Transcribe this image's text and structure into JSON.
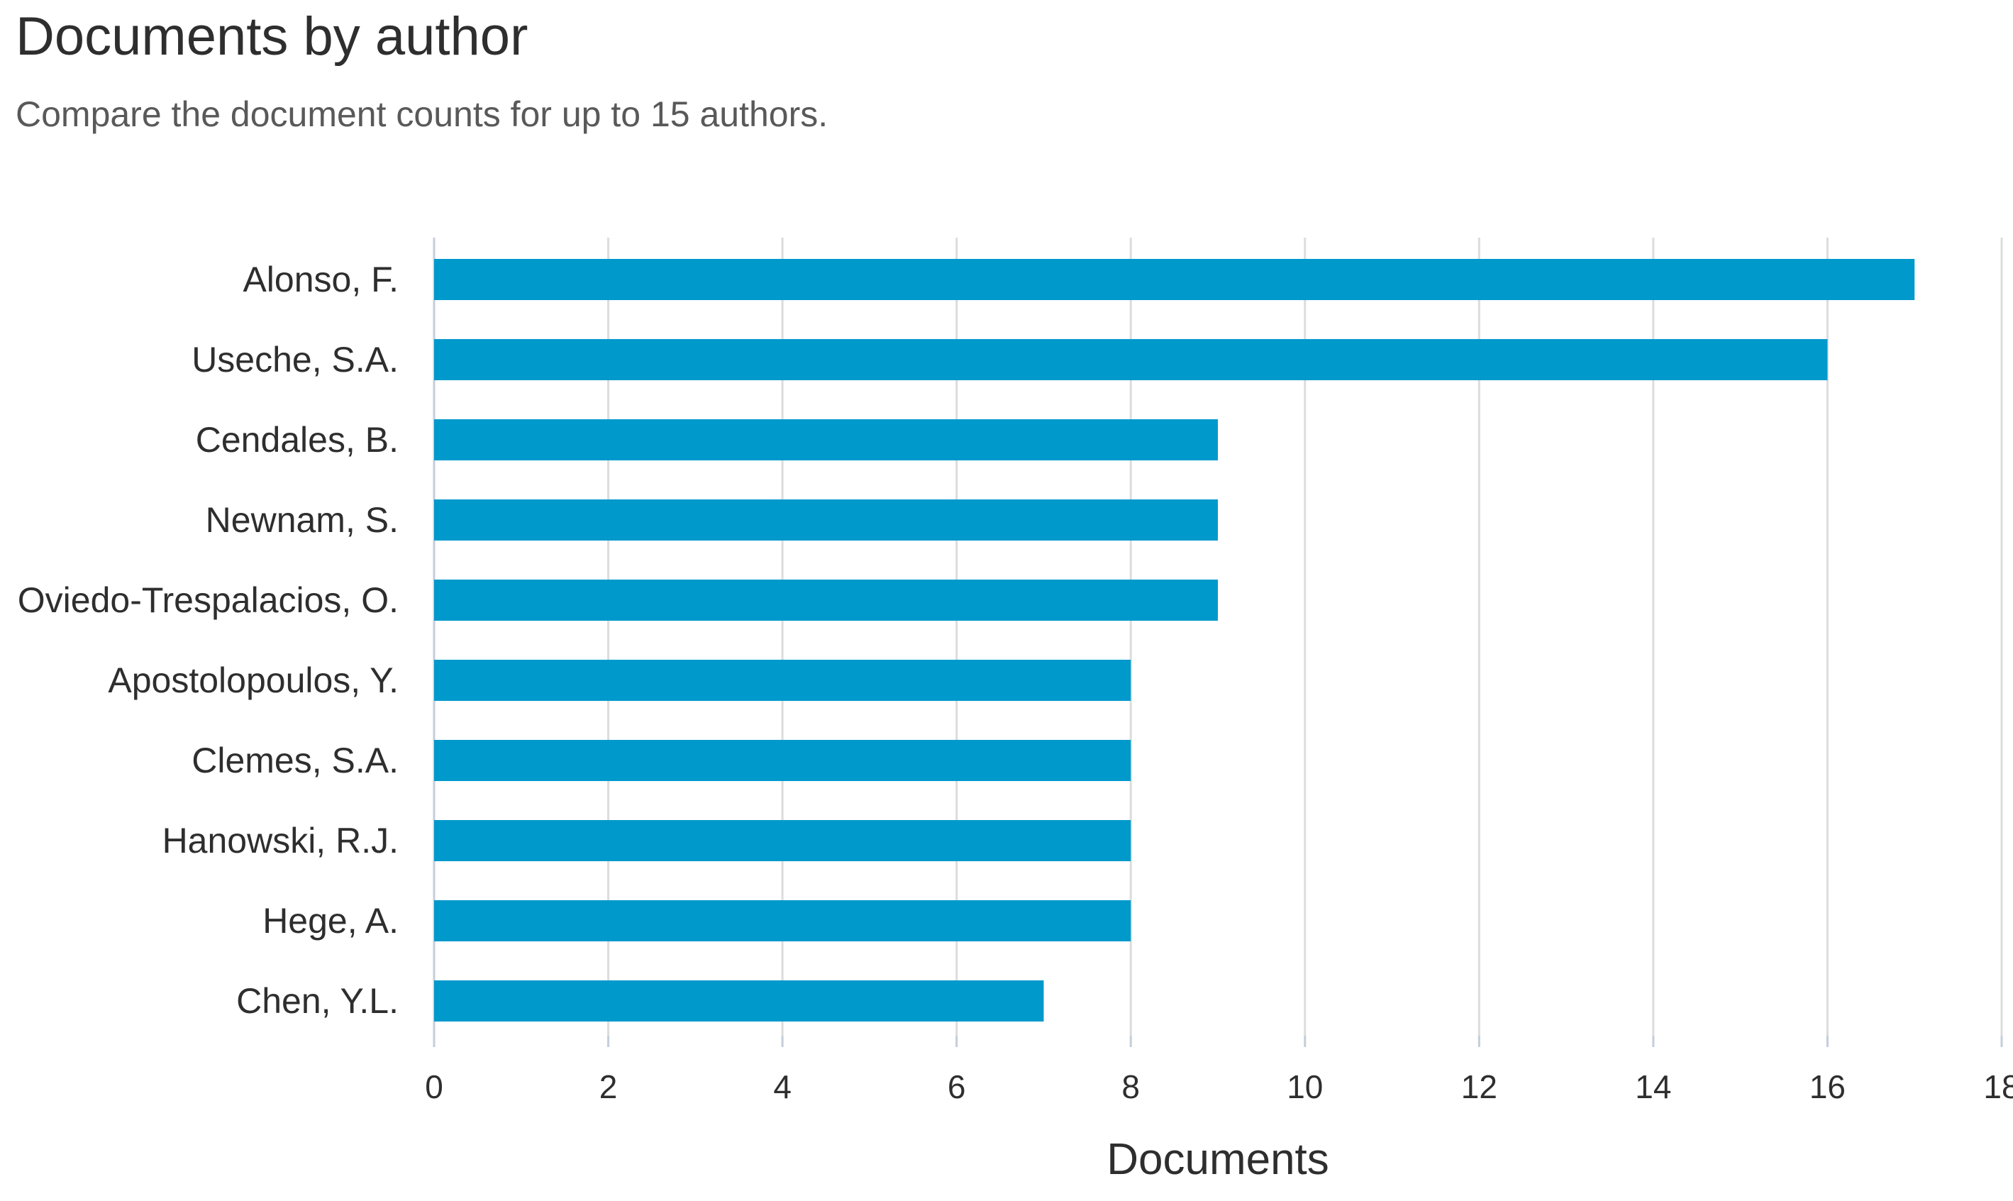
{
  "header": {
    "title": "Documents by author",
    "subtitle": "Compare the document counts for up to 15 authors."
  },
  "chart_data": {
    "type": "bar",
    "orientation": "horizontal",
    "categories": [
      "Alonso, F.",
      "Useche, S.A.",
      "Cendales, B.",
      "Newnam, S.",
      "Oviedo-Trespalacios, O.",
      "Apostolopoulos, Y.",
      "Clemes, S.A.",
      "Hanowski, R.J.",
      "Hege, A.",
      "Chen, Y.L."
    ],
    "values": [
      17,
      16,
      9,
      9,
      9,
      8,
      8,
      8,
      8,
      7
    ],
    "xlabel": "Documents",
    "ylabel": "",
    "xlim": [
      0,
      18
    ],
    "xticks": [
      "0",
      "2",
      "4",
      "6",
      "8",
      "10",
      "12",
      "14",
      "16",
      "18"
    ],
    "grid": true,
    "bar_color": "#0099cc",
    "grid_color": "#dcdcdc",
    "axis_color": "#c4cdda"
  }
}
